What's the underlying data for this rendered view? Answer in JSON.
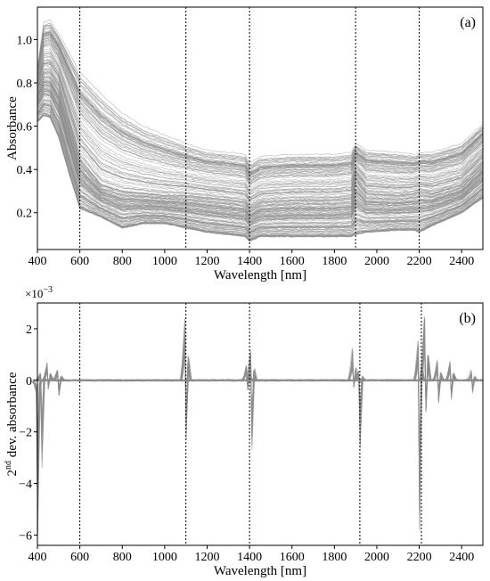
{
  "chart_data": [
    {
      "type": "line",
      "panel_tag": "(a)",
      "xlabel": "Wavelength [nm]",
      "ylabel": "Absorbance",
      "xlim": [
        400,
        2500
      ],
      "ylim": [
        0.03,
        1.15
      ],
      "x_ticks": [
        400,
        600,
        800,
        1000,
        1200,
        1400,
        1600,
        1800,
        2000,
        2200,
        2400
      ],
      "y_ticks": [
        0.2,
        0.4,
        0.6,
        0.8,
        1.0
      ],
      "y_tick_labels": [
        "0.2",
        "0.4",
        "0.6",
        "0.8",
        "1.0"
      ],
      "vertical_lines_nm": [
        600,
        1100,
        1400,
        1900,
        2200
      ],
      "line_color": "#8c8c8c",
      "vline_color": "#000000",
      "n_series": 150,
      "envelope": {
        "x": [
          400,
          430,
          460,
          500,
          550,
          600,
          700,
          800,
          900,
          1000,
          1100,
          1200,
          1300,
          1380,
          1400,
          1450,
          1600,
          1800,
          1880,
          1900,
          1950,
          2100,
          2180,
          2200,
          2260,
          2400,
          2500
        ],
        "y_min": [
          0.62,
          0.65,
          0.64,
          0.55,
          0.38,
          0.22,
          0.18,
          0.13,
          0.15,
          0.15,
          0.13,
          0.11,
          0.1,
          0.09,
          0.07,
          0.09,
          0.09,
          0.09,
          0.09,
          0.1,
          0.11,
          0.12,
          0.12,
          0.11,
          0.14,
          0.2,
          0.27
        ],
        "y_median": [
          0.77,
          0.85,
          0.85,
          0.79,
          0.62,
          0.45,
          0.33,
          0.3,
          0.29,
          0.28,
          0.28,
          0.27,
          0.26,
          0.25,
          0.22,
          0.25,
          0.26,
          0.26,
          0.27,
          0.36,
          0.29,
          0.28,
          0.29,
          0.3,
          0.29,
          0.33,
          0.43
        ],
        "y_max": [
          0.87,
          1.08,
          1.09,
          1.03,
          0.94,
          0.85,
          0.75,
          0.66,
          0.6,
          0.56,
          0.52,
          0.49,
          0.48,
          0.47,
          0.43,
          0.46,
          0.47,
          0.47,
          0.48,
          0.52,
          0.49,
          0.48,
          0.47,
          0.48,
          0.48,
          0.52,
          0.61
        ]
      }
    },
    {
      "type": "line",
      "panel_tag": "(b)",
      "xlabel": "Wavelength [nm]",
      "ylabel": "2nd dev. absorbance",
      "ylabel_sup": "nd",
      "ylabel_prefix": "2",
      "ylabel_suffix": " dev. absorbance",
      "exponent_base": "×10",
      "exponent_power": "−3",
      "xlim": [
        400,
        2500
      ],
      "ylim": [
        -6.4,
        3.0
      ],
      "x_ticks": [
        400,
        600,
        800,
        1000,
        1200,
        1400,
        1600,
        1800,
        2000,
        2200,
        2400
      ],
      "y_ticks": [
        -6,
        -4,
        -2,
        0,
        2
      ],
      "y_tick_labels": [
        "−6",
        "−4",
        "−2",
        "0",
        "2"
      ],
      "vertical_lines_nm": [
        600,
        1100,
        1400,
        1920,
        2210
      ],
      "line_color": "#8c8c8c",
      "vline_color": "#000000",
      "features": [
        {
          "x": 400,
          "y_hi": -0.5,
          "y_lo": -6.0
        },
        {
          "x": 420,
          "y_hi": 0.3,
          "y_lo": -3.5
        },
        {
          "x": 450,
          "y_hi": 0.8,
          "y_lo": -0.4
        },
        {
          "x": 500,
          "y_hi": 0.4,
          "y_lo": -0.6
        },
        {
          "x": 1100,
          "y_hi": 2.6,
          "y_lo": -2.5
        },
        {
          "x": 1390,
          "y_hi": 0.6,
          "y_lo": -0.4
        },
        {
          "x": 1410,
          "y_hi": 1.2,
          "y_lo": -2.7
        },
        {
          "x": 1890,
          "y_hi": 1.3,
          "y_lo": -0.3
        },
        {
          "x": 1920,
          "y_hi": 0.4,
          "y_lo": -2.8
        },
        {
          "x": 2200,
          "y_hi": 1.6,
          "y_lo": -6.1
        },
        {
          "x": 2230,
          "y_hi": 2.6,
          "y_lo": -1.3
        },
        {
          "x": 2290,
          "y_hi": 0.8,
          "y_lo": -0.9
        },
        {
          "x": 2350,
          "y_hi": 0.8,
          "y_lo": -0.8
        },
        {
          "x": 2450,
          "y_hi": 0.4,
          "y_lo": -0.5
        }
      ]
    }
  ]
}
